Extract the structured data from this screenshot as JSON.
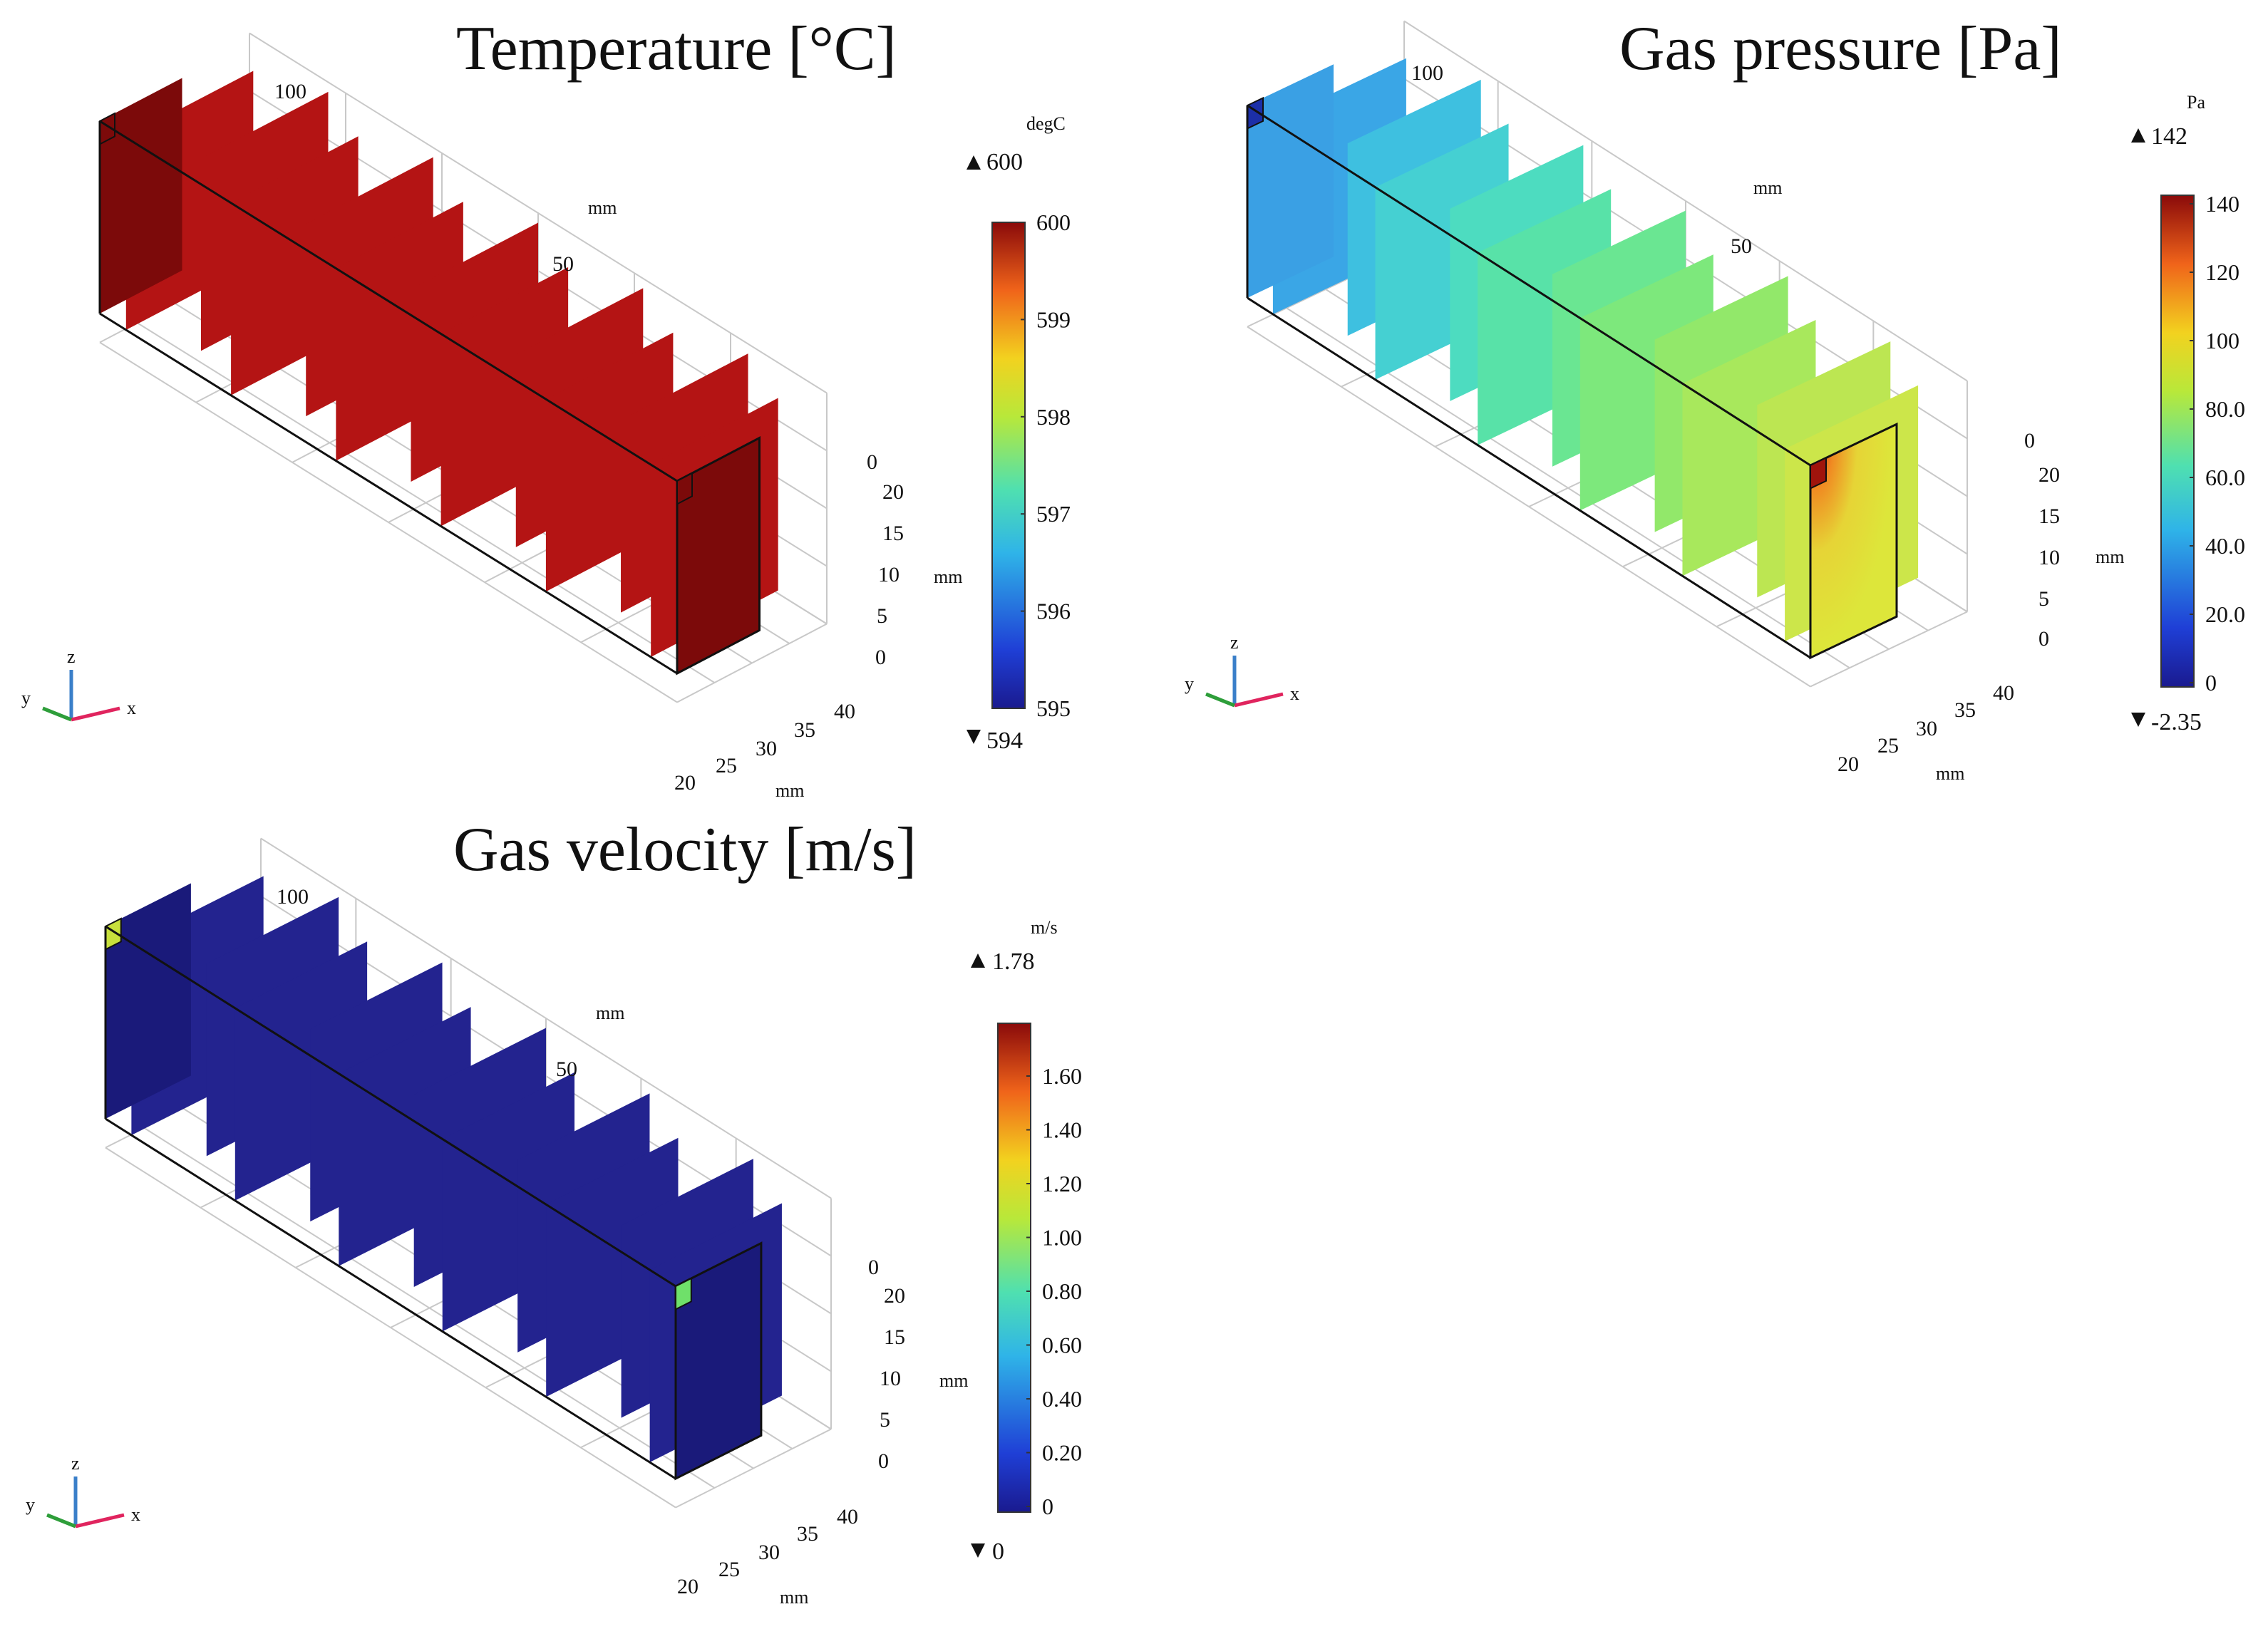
{
  "panels": [
    {
      "id": "temperature",
      "title": "Temperature [°C]",
      "colorbar": {
        "unit": "degC",
        "max_marker": "600",
        "min_marker": "594",
        "ticks": [
          "600",
          "599",
          "598",
          "597",
          "596",
          "595"
        ]
      },
      "axis_ticks": {
        "top_x": [
          "100",
          "50"
        ],
        "top_x_unit": "mm",
        "z": [
          "0",
          "20",
          "15",
          "10",
          "5",
          "0"
        ],
        "z_unit": "mm",
        "y": [
          "20",
          "25",
          "30",
          "35",
          "40"
        ],
        "y_unit": "mm"
      },
      "field": "uniform dark red (about 599-600 degC) on all baffles and end face"
    },
    {
      "id": "pressure",
      "title": "Gas pressure [Pa]",
      "colorbar": {
        "unit": "Pa",
        "max_marker": "142",
        "min_marker": "-2.35",
        "ticks": [
          "140",
          "120",
          "100",
          "80.0",
          "60.0",
          "40.0",
          "20.0",
          "0"
        ]
      },
      "axis_ticks": {
        "top_x": [
          "100",
          "50"
        ],
        "top_x_unit": "mm",
        "z": [
          "0",
          "20",
          "15",
          "10",
          "5",
          "0"
        ],
        "z_unit": "mm",
        "y": [
          "20",
          "25",
          "30",
          "35",
          "40"
        ],
        "y_unit": "mm"
      },
      "field": "gradient from cyan-blue at far end to yellow-green at near end, red spot at outlet"
    },
    {
      "id": "velocity",
      "title": "Gas velocity [m/s]",
      "colorbar": {
        "unit": "m/s",
        "max_marker": "1.78",
        "min_marker": "0",
        "ticks": [
          "1.60",
          "1.40",
          "1.20",
          "1.00",
          "0.80",
          "0.60",
          "0.40",
          "0.20",
          "0"
        ]
      },
      "axis_ticks": {
        "top_x": [
          "100",
          "50"
        ],
        "top_x_unit": "mm",
        "z": [
          "0",
          "20",
          "15",
          "10",
          "5",
          "0"
        ],
        "z_unit": "mm",
        "y": [
          "20",
          "25",
          "30",
          "35",
          "40"
        ],
        "y_unit": "mm"
      },
      "field": "uniform dark blue, green square at outlet, yellow-green at inlet"
    }
  ],
  "triad": {
    "x": "x",
    "y": "y",
    "z": "z"
  },
  "colors": {
    "temperature_face": "#b41414",
    "temperature_end": "#7c0a0a",
    "velocity_face": "#23238f",
    "velocity_end": "#1a1a7a",
    "triad_x": "#e0245e",
    "triad_y": "#2e9e3a",
    "triad_z": "#3a7fc9"
  }
}
